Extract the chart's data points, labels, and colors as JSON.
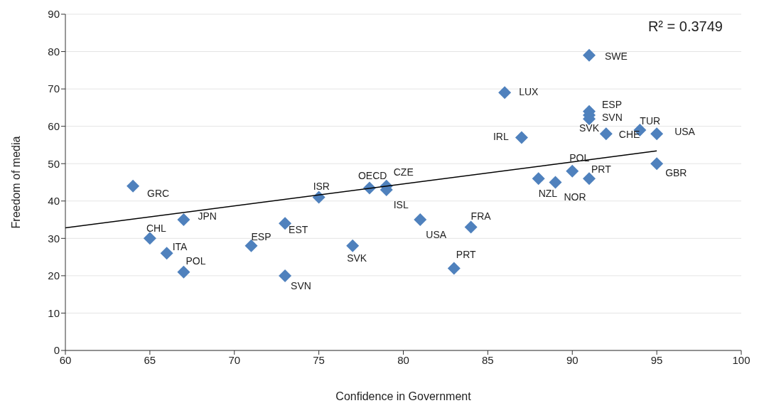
{
  "chart_data": {
    "type": "scatter",
    "xlabel": "Confidence in Government",
    "ylabel": "Freedom of media",
    "xlim": [
      60,
      100
    ],
    "ylim": [
      0,
      90
    ],
    "xticks": [
      60,
      65,
      70,
      75,
      80,
      85,
      90,
      95,
      100
    ],
    "yticks": [
      0,
      10,
      20,
      30,
      40,
      50,
      60,
      70,
      80,
      90
    ],
    "grid": "y",
    "annotations": [
      "R² = 0.3749"
    ],
    "series": [
      {
        "marker": "diamond",
        "color": "#4f81bd",
        "x": [
          64,
          65,
          66,
          67,
          67,
          71,
          73,
          73,
          75,
          77,
          78,
          79,
          79,
          81,
          83,
          84,
          86,
          87,
          88,
          89,
          90,
          91,
          91,
          91,
          91,
          91,
          92,
          94,
          95,
          95
        ],
        "values": [
          44,
          30,
          26,
          35,
          21,
          28,
          34,
          20,
          41,
          28,
          43.5,
          44,
          43,
          35,
          22,
          33,
          69,
          57,
          46,
          45,
          48,
          46,
          79,
          64,
          63,
          62,
          58,
          59,
          58,
          50
        ],
        "value_labels": [
          "GRC",
          "CHL",
          "ITA",
          "JPN",
          "POL",
          "ESP",
          "EST",
          "SVN",
          "ISR",
          "SVK",
          "OECD",
          "CZE",
          "ISL",
          "USA",
          "PRT",
          "FRA",
          "LUX",
          "IRL",
          "NZL",
          "NOR",
          "POL",
          "PRT",
          "SWE",
          "ESP",
          "SVN",
          "SVK",
          "CHE",
          "TUR",
          "USA",
          "GBR"
        ]
      },
      {
        "type": "line",
        "color": "#000000",
        "line_style": "solid",
        "x": [
          60,
          95
        ],
        "values": [
          32.8,
          53.4
        ]
      }
    ]
  }
}
